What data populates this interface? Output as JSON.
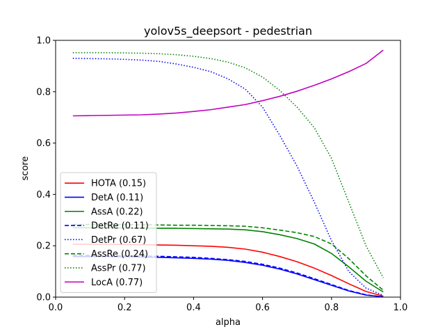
{
  "chart_data": {
    "type": "line",
    "title": "yolov5s_deepsort - pedestrian",
    "xlabel": "alpha",
    "ylabel": "score",
    "xlim": [
      0,
      1
    ],
    "ylim": [
      0,
      1
    ],
    "xticks": [
      "0.0",
      "0.2",
      "0.4",
      "0.6",
      "0.8",
      "1.0"
    ],
    "yticks": [
      "0.0",
      "0.2",
      "0.4",
      "0.6",
      "0.8",
      "1.0"
    ],
    "grid": false,
    "legend_position": "lower-left",
    "x": [
      0.05,
      0.1,
      0.15,
      0.2,
      0.25,
      0.3,
      0.35,
      0.4,
      0.45,
      0.5,
      0.55,
      0.6,
      0.65,
      0.7,
      0.75,
      0.8,
      0.85,
      0.9,
      0.95
    ],
    "series": [
      {
        "name": "HOTA (0.15)",
        "color": "#ff0000",
        "dash": "solid",
        "values": [
          0.206,
          0.206,
          0.206,
          0.205,
          0.204,
          0.203,
          0.202,
          0.2,
          0.198,
          0.194,
          0.187,
          0.175,
          0.158,
          0.138,
          0.113,
          0.084,
          0.052,
          0.022,
          0.004
        ]
      },
      {
        "name": "DetA (0.11)",
        "color": "#0000ff",
        "dash": "solid",
        "values": [
          0.158,
          0.158,
          0.158,
          0.157,
          0.156,
          0.155,
          0.153,
          0.151,
          0.148,
          0.143,
          0.135,
          0.124,
          0.109,
          0.09,
          0.068,
          0.046,
          0.024,
          0.008,
          0.001
        ]
      },
      {
        "name": "AssA (0.22)",
        "color": "#008000",
        "dash": "solid",
        "values": [
          0.27,
          0.27,
          0.27,
          0.269,
          0.269,
          0.268,
          0.268,
          0.267,
          0.266,
          0.265,
          0.262,
          0.255,
          0.243,
          0.228,
          0.207,
          0.17,
          0.118,
          0.062,
          0.02
        ]
      },
      {
        "name": "DetRe (0.11)",
        "color": "#0000ff",
        "dash": "dashed",
        "values": [
          0.162,
          0.162,
          0.161,
          0.161,
          0.16,
          0.159,
          0.157,
          0.155,
          0.151,
          0.146,
          0.139,
          0.128,
          0.113,
          0.094,
          0.072,
          0.049,
          0.026,
          0.009,
          0.001
        ]
      },
      {
        "name": "DetPr (0.67)",
        "color": "#0000ff",
        "dash": "dotted",
        "values": [
          0.93,
          0.929,
          0.928,
          0.926,
          0.923,
          0.918,
          0.908,
          0.895,
          0.878,
          0.85,
          0.81,
          0.74,
          0.63,
          0.51,
          0.37,
          0.22,
          0.1,
          0.035,
          0.007
        ]
      },
      {
        "name": "AssRe (0.24)",
        "color": "#008000",
        "dash": "dashed",
        "values": [
          0.283,
          0.283,
          0.283,
          0.282,
          0.282,
          0.281,
          0.28,
          0.28,
          0.279,
          0.278,
          0.276,
          0.27,
          0.261,
          0.251,
          0.236,
          0.207,
          0.15,
          0.083,
          0.027
        ]
      },
      {
        "name": "AssPr (0.77)",
        "color": "#008000",
        "dash": "dotted",
        "values": [
          0.952,
          0.952,
          0.952,
          0.951,
          0.95,
          0.948,
          0.944,
          0.938,
          0.929,
          0.915,
          0.893,
          0.857,
          0.805,
          0.74,
          0.66,
          0.54,
          0.37,
          0.2,
          0.075
        ]
      },
      {
        "name": "LocA (0.77)",
        "color": "#bf00bf",
        "dash": "solid",
        "values": [
          0.706,
          0.707,
          0.708,
          0.709,
          0.71,
          0.713,
          0.717,
          0.723,
          0.73,
          0.74,
          0.75,
          0.765,
          0.782,
          0.802,
          0.825,
          0.85,
          0.878,
          0.91,
          0.962
        ]
      }
    ]
  }
}
